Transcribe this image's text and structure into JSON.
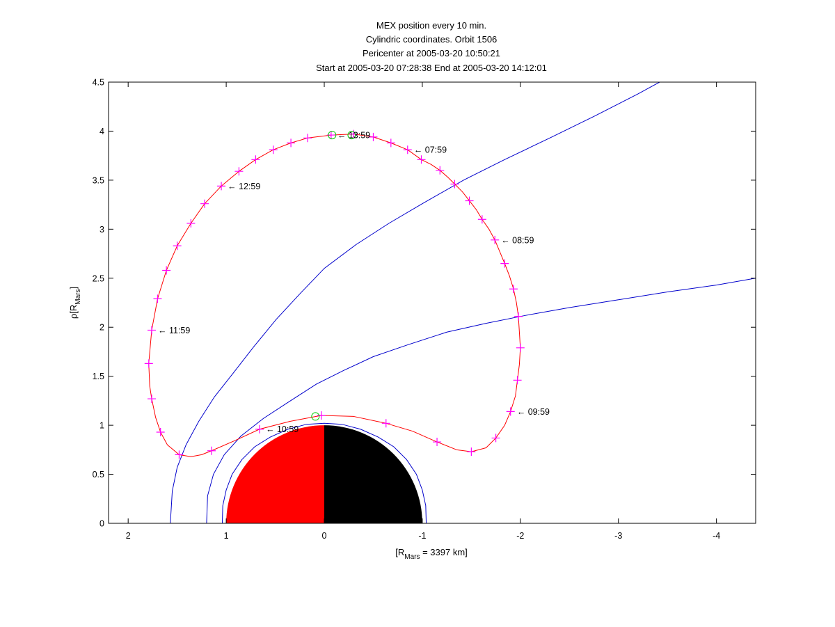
{
  "chart_data": {
    "type": "line",
    "title_lines": [
      "MEX position every 10 min.",
      "Cylindric coordinates. Orbit 1506",
      "Pericenter at 2005-03-20 10:50:21",
      "Start at 2005-03-20 07:28:38 End at 2005-03-20 14:12:01"
    ],
    "xlabel": {
      "main": "[R",
      "sub": "Mars",
      "rest": " = 3397 km]"
    },
    "ylabel": {
      "main": "ρ[R",
      "sub": "Mars",
      "rest": "]"
    },
    "xlim": [
      2.2,
      -4.4
    ],
    "ylim": [
      0,
      4.5
    ],
    "xticks": [
      2,
      1,
      0,
      -1,
      -2,
      -3,
      -4
    ],
    "yticks": [
      0,
      0.5,
      1,
      1.5,
      2,
      2.5,
      3,
      3.5,
      4,
      4.5
    ],
    "grid": false,
    "colors": {
      "orbit": "#ff0000",
      "markers": "#ff00ff",
      "boundaries": "#0000cc",
      "dayside": "#ff0000",
      "nightside": "#000000",
      "circle_markers": "#00cc00"
    },
    "orbit_markers": [
      [
        -0.99,
        3.71
      ],
      [
        -0.85,
        3.81
      ],
      [
        -0.68,
        3.88
      ],
      [
        -0.5,
        3.94
      ],
      [
        -0.3,
        3.97
      ],
      [
        -0.07,
        3.96
      ],
      [
        0.17,
        3.93
      ],
      [
        0.34,
        3.88
      ],
      [
        0.52,
        3.81
      ],
      [
        0.7,
        3.71
      ],
      [
        0.87,
        3.59
      ],
      [
        1.05,
        3.44
      ],
      [
        1.22,
        3.26
      ],
      [
        1.36,
        3.06
      ],
      [
        1.5,
        2.83
      ],
      [
        1.61,
        2.58
      ],
      [
        1.7,
        2.29
      ],
      [
        1.76,
        1.97
      ],
      [
        1.79,
        1.63
      ],
      [
        1.76,
        1.27
      ],
      [
        1.67,
        0.93
      ],
      [
        1.48,
        0.7
      ],
      [
        1.15,
        0.74
      ],
      [
        0.66,
        0.96
      ],
      [
        0.03,
        1.1
      ],
      [
        -0.63,
        1.02
      ],
      [
        -1.15,
        0.83
      ],
      [
        -1.5,
        0.73
      ],
      [
        -1.75,
        0.87
      ],
      [
        -1.9,
        1.14
      ],
      [
        -1.97,
        1.46
      ],
      [
        -2.0,
        1.79
      ],
      [
        -1.98,
        2.11
      ],
      [
        -1.93,
        2.39
      ],
      [
        -1.84,
        2.65
      ],
      [
        -1.74,
        2.89
      ],
      [
        -1.61,
        3.1
      ],
      [
        -1.48,
        3.29
      ],
      [
        -1.33,
        3.46
      ],
      [
        -1.18,
        3.6
      ]
    ],
    "orbit_curve": [
      [
        -0.99,
        3.71
      ],
      [
        -0.85,
        3.81
      ],
      [
        -0.68,
        3.88
      ],
      [
        -0.5,
        3.94
      ],
      [
        -0.3,
        3.97
      ],
      [
        -0.07,
        3.96
      ],
      [
        0.17,
        3.93
      ],
      [
        0.34,
        3.88
      ],
      [
        0.52,
        3.81
      ],
      [
        0.7,
        3.71
      ],
      [
        0.87,
        3.59
      ],
      [
        1.05,
        3.44
      ],
      [
        1.22,
        3.26
      ],
      [
        1.36,
        3.06
      ],
      [
        1.5,
        2.83
      ],
      [
        1.61,
        2.58
      ],
      [
        1.7,
        2.29
      ],
      [
        1.76,
        1.97
      ],
      [
        1.79,
        1.63
      ],
      [
        1.78,
        1.4
      ],
      [
        1.76,
        1.27
      ],
      [
        1.72,
        1.08
      ],
      [
        1.67,
        0.93
      ],
      [
        1.6,
        0.8
      ],
      [
        1.48,
        0.7
      ],
      [
        1.36,
        0.68
      ],
      [
        1.25,
        0.7
      ],
      [
        1.15,
        0.74
      ],
      [
        0.92,
        0.84
      ],
      [
        0.66,
        0.96
      ],
      [
        0.35,
        1.04
      ],
      [
        0.03,
        1.1
      ],
      [
        -0.3,
        1.09
      ],
      [
        -0.63,
        1.02
      ],
      [
        -0.9,
        0.94
      ],
      [
        -1.15,
        0.83
      ],
      [
        -1.35,
        0.75
      ],
      [
        -1.5,
        0.73
      ],
      [
        -1.65,
        0.77
      ],
      [
        -1.75,
        0.87
      ],
      [
        -1.84,
        1.0
      ],
      [
        -1.9,
        1.14
      ],
      [
        -1.95,
        1.3
      ],
      [
        -1.97,
        1.46
      ],
      [
        -1.99,
        1.62
      ],
      [
        -2.0,
        1.79
      ],
      [
        -1.99,
        1.95
      ],
      [
        -1.98,
        2.11
      ],
      [
        -1.96,
        2.25
      ],
      [
        -1.93,
        2.39
      ],
      [
        -1.89,
        2.52
      ],
      [
        -1.84,
        2.65
      ],
      [
        -1.79,
        2.77
      ],
      [
        -1.74,
        2.89
      ],
      [
        -1.68,
        3.0
      ],
      [
        -1.61,
        3.1
      ],
      [
        -1.55,
        3.2
      ],
      [
        -1.48,
        3.29
      ],
      [
        -1.41,
        3.38
      ],
      [
        -1.33,
        3.46
      ],
      [
        -1.26,
        3.53
      ],
      [
        -1.18,
        3.6
      ],
      [
        -1.09,
        3.66
      ],
      [
        -0.99,
        3.71
      ]
    ],
    "boundary_curves": [
      [
        [
          1.57,
          0
        ],
        [
          1.55,
          0.33
        ],
        [
          1.5,
          0.57
        ],
        [
          1.41,
          0.8
        ],
        [
          1.28,
          1.04
        ],
        [
          1.12,
          1.29
        ],
        [
          0.93,
          1.53
        ],
        [
          0.72,
          1.8
        ],
        [
          0.49,
          2.08
        ],
        [
          0.24,
          2.35
        ],
        [
          0,
          2.6
        ],
        [
          -0.32,
          2.84
        ],
        [
          -0.66,
          3.06
        ],
        [
          -1.0,
          3.26
        ],
        [
          -1.42,
          3.5
        ],
        [
          -1.84,
          3.71
        ],
        [
          -2.3,
          3.93
        ],
        [
          -2.75,
          4.15
        ],
        [
          -3.2,
          4.38
        ],
        [
          -3.42,
          4.5
        ]
      ],
      [
        [
          1.2,
          0
        ],
        [
          1.19,
          0.28
        ],
        [
          1.13,
          0.5
        ],
        [
          1.02,
          0.7
        ],
        [
          0.85,
          0.89
        ],
        [
          0.62,
          1.07
        ],
        [
          0.36,
          1.24
        ],
        [
          0.08,
          1.42
        ],
        [
          -0.2,
          1.56
        ],
        [
          -0.5,
          1.7
        ],
        [
          -0.85,
          1.82
        ],
        [
          -1.25,
          1.95
        ],
        [
          -1.65,
          2.04
        ],
        [
          -2.05,
          2.12
        ],
        [
          -2.5,
          2.2
        ],
        [
          -3.0,
          2.28
        ],
        [
          -3.5,
          2.36
        ],
        [
          -4.0,
          2.43
        ],
        [
          -4.4,
          2.5
        ]
      ],
      [
        [
          1.04,
          0
        ],
        [
          1.035,
          0.18
        ],
        [
          1.0,
          0.34
        ],
        [
          0.94,
          0.5
        ],
        [
          0.84,
          0.65
        ],
        [
          0.71,
          0.78
        ],
        [
          0.55,
          0.88
        ],
        [
          0.37,
          0.96
        ],
        [
          0.18,
          1.01
        ],
        [
          0,
          1.02
        ],
        [
          -0.18,
          1.01
        ],
        [
          -0.37,
          0.96
        ],
        [
          -0.55,
          0.88
        ],
        [
          -0.71,
          0.78
        ],
        [
          -0.84,
          0.65
        ],
        [
          -0.94,
          0.5
        ],
        [
          -1.0,
          0.34
        ],
        [
          -1.035,
          0.18
        ],
        [
          -1.04,
          0
        ]
      ]
    ],
    "circle_markers": [
      [
        -0.08,
        3.96
      ],
      [
        -0.28,
        3.96
      ],
      [
        0.09,
        1.09
      ]
    ],
    "planet_radius": 1,
    "time_labels": [
      {
        "text": "← 07:59",
        "x": -0.85,
        "y": 3.81
      },
      {
        "text": "← 08:59",
        "x": -1.74,
        "y": 2.89
      },
      {
        "text": "← 09:59",
        "x": -1.9,
        "y": 1.14
      },
      {
        "text": "← 10:59",
        "x": 0.66,
        "y": 0.96
      },
      {
        "text": "← 11:59",
        "x": 1.76,
        "y": 1.97
      },
      {
        "text": "← 12:59",
        "x": 1.05,
        "y": 3.44
      },
      {
        "text": "← 13:59",
        "x": -0.07,
        "y": 3.96
      }
    ]
  }
}
